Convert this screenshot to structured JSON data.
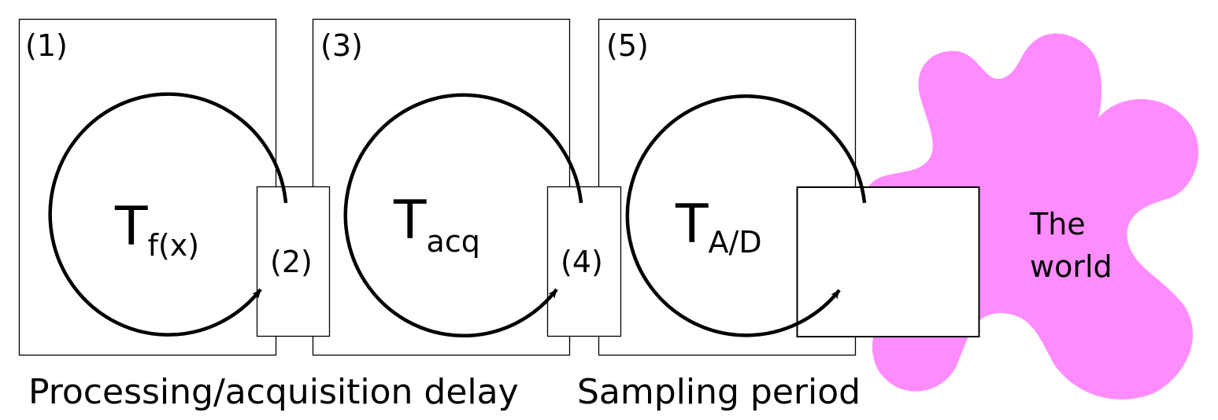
{
  "colors": {
    "world_fill": "#ff8cff",
    "stroke": "#000000",
    "background": "#ffffff"
  },
  "stages": [
    {
      "number_label": "(1)",
      "time_main": "T",
      "time_sub": "f(x)"
    },
    {
      "number_label": "(3)",
      "time_main": "T",
      "time_sub": "acq"
    },
    {
      "number_label": "(5)",
      "time_main": "T",
      "time_sub": "A/D"
    }
  ],
  "connectors": [
    {
      "number_label": "(2)"
    },
    {
      "number_label": "(4)"
    }
  ],
  "world": {
    "line1": "The",
    "line2": "world"
  },
  "captions": {
    "delay": "Processing/acquisition delay",
    "sampling": "Sampling period"
  }
}
